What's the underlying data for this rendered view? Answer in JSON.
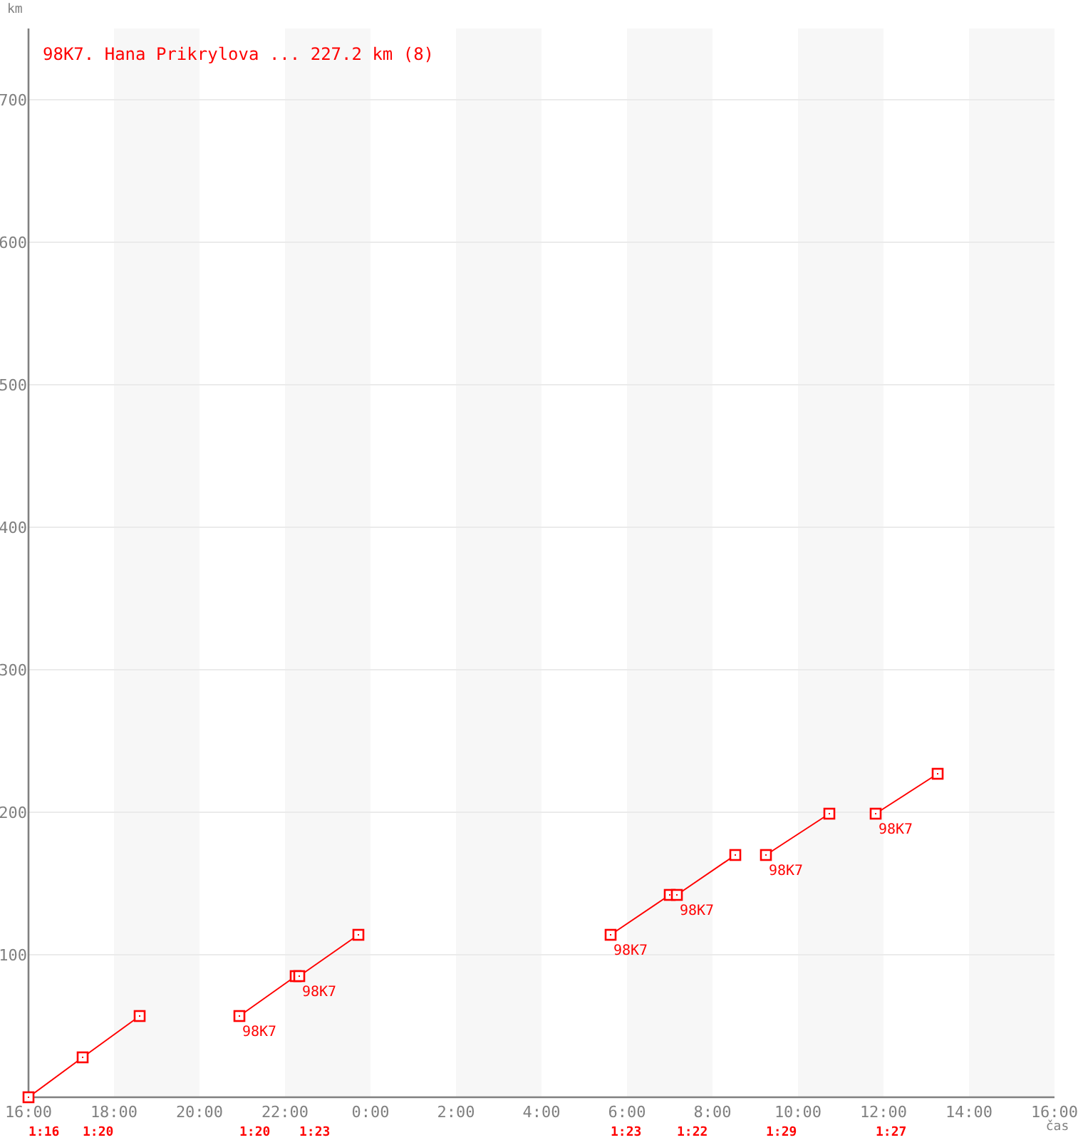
{
  "chart_data": {
    "type": "line",
    "title": "98K7. Hana Prikrylova ... 227.2 km (8)",
    "xlabel": "čas",
    "ylabel": "km",
    "xlim": [
      "2000-01-01T16:00",
      "2000-01-02T16:00"
    ],
    "ylim": [
      0,
      750
    ],
    "xticks": [
      {
        "value": "2000-01-01T16:00",
        "label": "16:00"
      },
      {
        "value": "2000-01-01T18:00",
        "label": "18:00"
      },
      {
        "value": "2000-01-01T20:00",
        "label": "20:00"
      },
      {
        "value": "2000-01-01T22:00",
        "label": "22:00"
      },
      {
        "value": "2000-01-02T00:00",
        "label": "0:00"
      },
      {
        "value": "2000-01-02T02:00",
        "label": "2:00"
      },
      {
        "value": "2000-01-02T04:00",
        "label": "4:00"
      },
      {
        "value": "2000-01-02T06:00",
        "label": "6:00"
      },
      {
        "value": "2000-01-02T08:00",
        "label": "8:00"
      },
      {
        "value": "2000-01-02T10:00",
        "label": "10:00"
      },
      {
        "value": "2000-01-02T12:00",
        "label": "12:00"
      },
      {
        "value": "2000-01-02T14:00",
        "label": "14:00"
      },
      {
        "value": "2000-01-02T16:00",
        "label": "16:00"
      }
    ],
    "yticks": [
      100,
      200,
      300,
      400,
      500,
      600,
      700
    ],
    "grid": "y",
    "marker": "square",
    "line_style": "solid",
    "bands": [
      {
        "axis": "x",
        "from": "2000-01-01T18:00",
        "to": "2000-01-01T20:00",
        "color": "#f7f7f7"
      },
      {
        "axis": "x",
        "from": "2000-01-01T22:00",
        "to": "2000-01-02T00:00",
        "color": "#f7f7f7"
      },
      {
        "axis": "x",
        "from": "2000-01-02T02:00",
        "to": "2000-01-02T04:00",
        "color": "#f7f7f7"
      },
      {
        "axis": "x",
        "from": "2000-01-02T06:00",
        "to": "2000-01-02T08:00",
        "color": "#f7f7f7"
      },
      {
        "axis": "x",
        "from": "2000-01-02T10:00",
        "to": "2000-01-02T12:00",
        "color": "#f7f7f7"
      },
      {
        "axis": "x",
        "from": "2000-01-02T14:00",
        "to": "2000-01-02T16:00",
        "color": "#f7f7f7"
      }
    ],
    "series": [
      {
        "color": "#ff0000",
        "x": [
          "2000-01-01T16:00",
          "2000-01-01T17:16",
          "2000-01-01T18:36",
          "2000-01-01T19:30",
          "2000-01-01T20:56",
          "2000-01-01T22:15",
          "2000-01-01T22:20",
          "2000-01-01T23:43",
          "2000-01-02T02:00",
          "2000-01-02T05:37",
          "2000-01-02T07:00",
          "2000-01-02T07:10",
          "2000-01-02T08:32",
          "2000-01-02T09:00",
          "2000-01-02T09:15",
          "2000-01-02T10:44",
          "2000-01-02T11:18",
          "2000-01-02T11:49",
          "2000-01-02T13:16"
        ],
        "values": [
          0,
          28,
          57,
          null,
          57,
          85,
          85,
          114,
          null,
          114,
          142,
          142,
          170,
          null,
          170,
          199,
          null,
          199,
          227
        ]
      }
    ],
    "annotations": [
      {
        "text": "98K7",
        "x": "2000-01-01T20:56",
        "y": 57
      },
      {
        "text": "98K7",
        "x": "2000-01-01T22:20",
        "y": 85
      },
      {
        "text": "98K7",
        "x": "2000-01-02T05:37",
        "y": 114
      },
      {
        "text": "98K7",
        "x": "2000-01-02T07:10",
        "y": 142
      },
      {
        "text": "98K7",
        "x": "2000-01-02T09:15",
        "y": 170
      },
      {
        "text": "98K7",
        "x": "2000-01-02T11:49",
        "y": 199
      },
      "1:16",
      "1:20",
      "1:20",
      "1:23",
      "1:23",
      "1:22",
      "1:29",
      "1:27"
    ]
  }
}
